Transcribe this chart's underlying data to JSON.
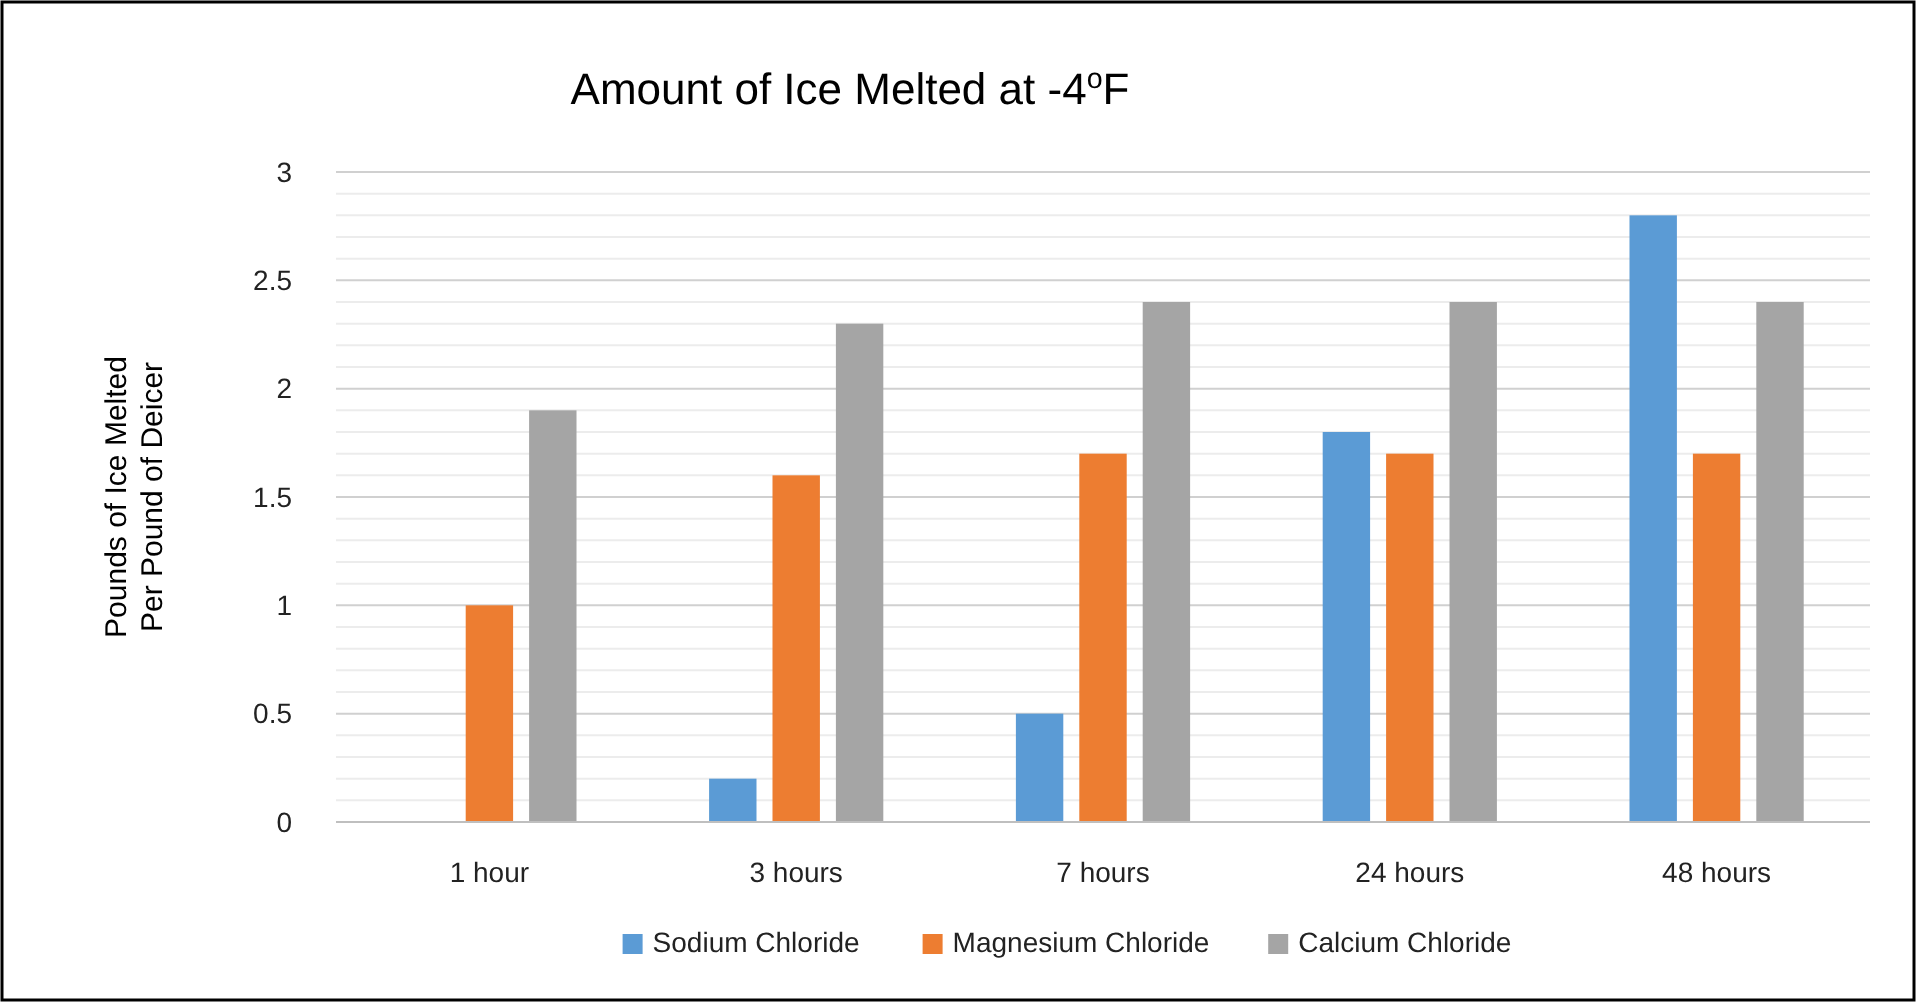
{
  "chart_data": {
    "type": "bar",
    "title": "Amount of Ice Melted at -4$^{o}$F",
    "ylabel": "Pounds of Ice Melted Per Pound of Deicer",
    "categories": [
      "1 hour",
      "3 hours",
      "7 hours",
      "24 hours",
      "48 hours"
    ],
    "series": [
      {
        "name": "Sodium Chloride",
        "color": "#5b9bd5",
        "values": [
          0,
          0.2,
          0.5,
          1.8,
          2.8
        ]
      },
      {
        "name": "Magnesium Chloride",
        "color": "#ed7d31",
        "values": [
          1.0,
          1.6,
          1.7,
          1.7,
          1.7
        ]
      },
      {
        "name": "Calcium Chloride",
        "color": "#a5a5a5",
        "values": [
          1.9,
          2.3,
          2.4,
          2.4,
          2.4
        ]
      }
    ],
    "ylim": [
      0,
      3
    ],
    "yticks": [
      0,
      0.5,
      1,
      1.5,
      2,
      2.5,
      3
    ],
    "grid": "y",
    "legend": "bottom"
  }
}
